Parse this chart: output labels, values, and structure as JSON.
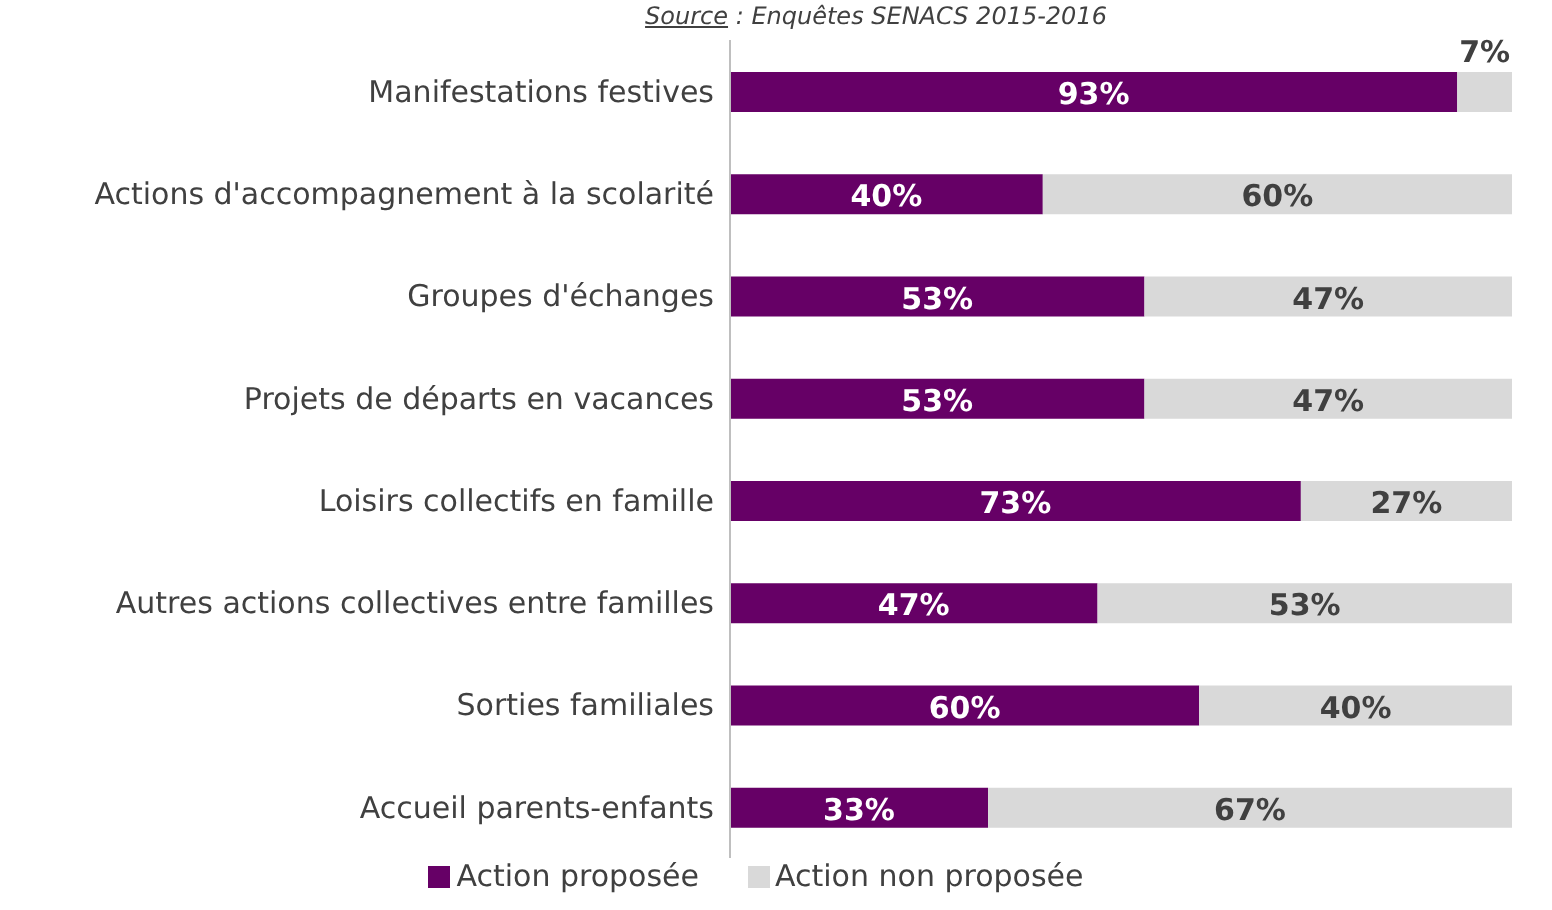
{
  "chart_data": {
    "type": "bar",
    "orientation": "horizontal",
    "stacked": true,
    "legend": "bottom",
    "annotations": [
      "Source : Enquêtes SENACS 2015-2016"
    ],
    "categories": [
      "Manifestations festives",
      "Actions d'accompagnement à la scolarité",
      "Groupes d'échanges",
      "Projets de départs en vacances",
      "Loisirs collectifs en famille",
      "Autres actions collectives entre familles",
      "Sorties familiales",
      "Accueil parents-enfants"
    ],
    "series": [
      {
        "name": "Action proposée",
        "color": "#660066",
        "values": [
          93,
          40,
          53,
          53,
          73,
          47,
          60,
          33
        ],
        "value_labels": [
          "93%",
          "40%",
          "53%",
          "53%",
          "73%",
          "47%",
          "60%",
          "33%"
        ]
      },
      {
        "name": "Action non proposée",
        "color": "#d9d9d9",
        "values": [
          7,
          60,
          47,
          47,
          27,
          53,
          40,
          67
        ],
        "value_labels": [
          "7%",
          "60%",
          "47%",
          "47%",
          "27%",
          "53%",
          "40%",
          "67%"
        ]
      }
    ]
  }
}
